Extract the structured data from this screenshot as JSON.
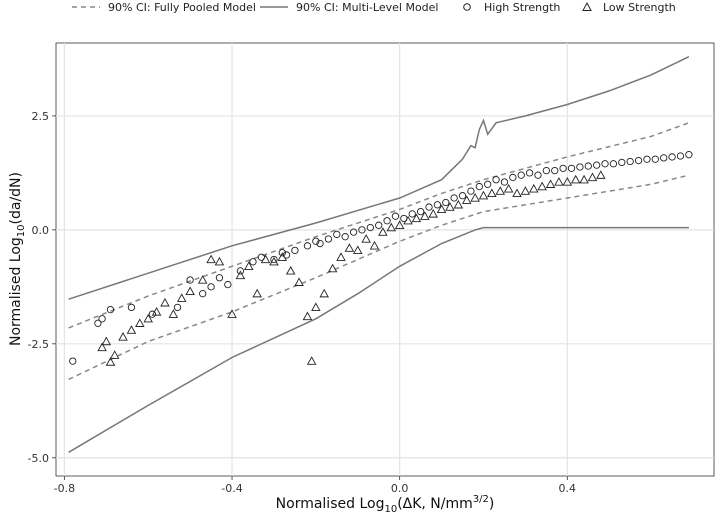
{
  "chart_data": {
    "type": "scatter",
    "title": "",
    "xlabel": "Normalised Log10(ΔK, N/mm3/2)",
    "ylabel": "Normalised Log10(da/dN)",
    "xlim": [
      -0.82,
      0.75
    ],
    "ylim": [
      -5.4,
      4.1
    ],
    "x_ticks": [
      -0.8,
      -0.4,
      0.0,
      0.4
    ],
    "x_tick_labels": [
      "-0.8",
      "-0.4",
      "0.0",
      "0.4"
    ],
    "y_ticks": [
      2.5,
      0.0,
      -2.5,
      -5.0
    ],
    "y_tick_labels": [
      "2.5",
      "0.0",
      "-2.5",
      "-5.0"
    ],
    "grid": true,
    "legend_position": "top",
    "legend": [
      {
        "label": "90% CI: Fully Pooled Model",
        "style": "dashed",
        "color": "#888888"
      },
      {
        "label": "90% CI: Multi-Level Model",
        "style": "solid",
        "color": "#777777"
      },
      {
        "label": "High Strength",
        "marker": "circle"
      },
      {
        "label": "Low Strength",
        "marker": "triangle"
      }
    ],
    "series": [
      {
        "name": "90% CI: Fully Pooled Model",
        "kind": "band",
        "style": "dashed",
        "upper": [
          [
            -0.79,
            -2.15
          ],
          [
            -0.6,
            -1.45
          ],
          [
            -0.4,
            -0.8
          ],
          [
            -0.2,
            -0.15
          ],
          [
            0.0,
            0.45
          ],
          [
            0.1,
            0.8
          ],
          [
            0.2,
            1.1
          ],
          [
            0.4,
            1.6
          ],
          [
            0.6,
            2.05
          ],
          [
            0.69,
            2.35
          ]
        ],
        "lower": [
          [
            -0.79,
            -3.28
          ],
          [
            -0.6,
            -2.45
          ],
          [
            -0.4,
            -1.8
          ],
          [
            -0.2,
            -1.05
          ],
          [
            0.0,
            -0.25
          ],
          [
            0.1,
            0.1
          ],
          [
            0.2,
            0.4
          ],
          [
            0.4,
            0.7
          ],
          [
            0.6,
            1.0
          ],
          [
            0.69,
            1.2
          ]
        ]
      },
      {
        "name": "90% CI: Multi-Level Model",
        "kind": "band",
        "style": "solid",
        "upper": [
          [
            -0.79,
            -1.52
          ],
          [
            -0.6,
            -0.95
          ],
          [
            -0.4,
            -0.35
          ],
          [
            -0.2,
            0.15
          ],
          [
            0.0,
            0.7
          ],
          [
            0.1,
            1.1
          ],
          [
            0.15,
            1.55
          ],
          [
            0.17,
            1.85
          ],
          [
            0.18,
            1.8
          ],
          [
            0.19,
            2.2
          ],
          [
            0.2,
            2.4
          ],
          [
            0.21,
            2.1
          ],
          [
            0.23,
            2.35
          ],
          [
            0.3,
            2.5
          ],
          [
            0.4,
            2.75
          ],
          [
            0.5,
            3.05
          ],
          [
            0.6,
            3.4
          ],
          [
            0.69,
            3.8
          ]
        ],
        "lower": [
          [
            -0.79,
            -4.88
          ],
          [
            -0.6,
            -3.85
          ],
          [
            -0.4,
            -2.8
          ],
          [
            -0.2,
            -1.95
          ],
          [
            -0.1,
            -1.4
          ],
          [
            0.0,
            -0.8
          ],
          [
            0.1,
            -0.3
          ],
          [
            0.18,
            0.0
          ],
          [
            0.2,
            0.05
          ],
          [
            0.4,
            0.05
          ],
          [
            0.69,
            0.05
          ]
        ]
      },
      {
        "name": "High Strength",
        "kind": "points",
        "marker": "circle",
        "points": [
          [
            -0.78,
            -2.88
          ],
          [
            -0.72,
            -2.05
          ],
          [
            -0.71,
            -1.95
          ],
          [
            -0.69,
            -1.75
          ],
          [
            -0.64,
            -1.7
          ],
          [
            -0.59,
            -1.85
          ],
          [
            -0.53,
            -1.7
          ],
          [
            -0.5,
            -1.1
          ],
          [
            -0.47,
            -1.4
          ],
          [
            -0.45,
            -1.25
          ],
          [
            -0.43,
            -1.05
          ],
          [
            -0.41,
            -1.2
          ],
          [
            -0.38,
            -0.9
          ],
          [
            -0.35,
            -0.7
          ],
          [
            -0.33,
            -0.6
          ],
          [
            -0.3,
            -0.65
          ],
          [
            -0.28,
            -0.5
          ],
          [
            -0.27,
            -0.55
          ],
          [
            -0.25,
            -0.45
          ],
          [
            -0.22,
            -0.35
          ],
          [
            -0.2,
            -0.25
          ],
          [
            -0.19,
            -0.3
          ],
          [
            -0.17,
            -0.2
          ],
          [
            -0.15,
            -0.1
          ],
          [
            -0.13,
            -0.15
          ],
          [
            -0.11,
            -0.05
          ],
          [
            -0.09,
            0.0
          ],
          [
            -0.07,
            0.05
          ],
          [
            -0.05,
            0.1
          ],
          [
            -0.03,
            0.2
          ],
          [
            -0.01,
            0.3
          ],
          [
            0.01,
            0.25
          ],
          [
            0.03,
            0.35
          ],
          [
            0.05,
            0.4
          ],
          [
            0.07,
            0.5
          ],
          [
            0.09,
            0.55
          ],
          [
            0.11,
            0.6
          ],
          [
            0.13,
            0.7
          ],
          [
            0.15,
            0.75
          ],
          [
            0.17,
            0.85
          ],
          [
            0.19,
            0.95
          ],
          [
            0.21,
            1.0
          ],
          [
            0.23,
            1.1
          ],
          [
            0.25,
            1.05
          ],
          [
            0.27,
            1.15
          ],
          [
            0.29,
            1.2
          ],
          [
            0.31,
            1.25
          ],
          [
            0.33,
            1.2
          ],
          [
            0.35,
            1.3
          ],
          [
            0.37,
            1.3
          ],
          [
            0.39,
            1.35
          ],
          [
            0.41,
            1.35
          ],
          [
            0.43,
            1.38
          ],
          [
            0.45,
            1.4
          ],
          [
            0.47,
            1.42
          ],
          [
            0.49,
            1.45
          ],
          [
            0.51,
            1.45
          ],
          [
            0.53,
            1.48
          ],
          [
            0.55,
            1.5
          ],
          [
            0.57,
            1.52
          ],
          [
            0.59,
            1.55
          ],
          [
            0.61,
            1.55
          ],
          [
            0.63,
            1.58
          ],
          [
            0.65,
            1.6
          ],
          [
            0.67,
            1.62
          ],
          [
            0.69,
            1.65
          ]
        ]
      },
      {
        "name": "Low Strength",
        "kind": "points",
        "marker": "triangle",
        "points": [
          [
            -0.71,
            -2.58
          ],
          [
            -0.7,
            -2.45
          ],
          [
            -0.69,
            -2.9
          ],
          [
            -0.68,
            -2.75
          ],
          [
            -0.66,
            -2.35
          ],
          [
            -0.64,
            -2.2
          ],
          [
            -0.62,
            -2.05
          ],
          [
            -0.6,
            -1.95
          ],
          [
            -0.58,
            -1.8
          ],
          [
            -0.56,
            -1.6
          ],
          [
            -0.54,
            -1.85
          ],
          [
            -0.52,
            -1.5
          ],
          [
            -0.5,
            -1.35
          ],
          [
            -0.47,
            -1.1
          ],
          [
            -0.45,
            -0.65
          ],
          [
            -0.43,
            -0.7
          ],
          [
            -0.4,
            -1.85
          ],
          [
            -0.38,
            -1.0
          ],
          [
            -0.36,
            -0.8
          ],
          [
            -0.34,
            -1.4
          ],
          [
            -0.32,
            -0.65
          ],
          [
            -0.3,
            -0.7
          ],
          [
            -0.28,
            -0.6
          ],
          [
            -0.26,
            -0.9
          ],
          [
            -0.24,
            -1.15
          ],
          [
            -0.22,
            -1.9
          ],
          [
            -0.21,
            -2.88
          ],
          [
            -0.2,
            -1.7
          ],
          [
            -0.18,
            -1.4
          ],
          [
            -0.16,
            -0.85
          ],
          [
            -0.14,
            -0.6
          ],
          [
            -0.12,
            -0.4
          ],
          [
            -0.1,
            -0.45
          ],
          [
            -0.08,
            -0.2
          ],
          [
            -0.06,
            -0.35
          ],
          [
            -0.04,
            -0.05
          ],
          [
            -0.02,
            0.05
          ],
          [
            0.0,
            0.1
          ],
          [
            0.02,
            0.2
          ],
          [
            0.04,
            0.25
          ],
          [
            0.06,
            0.3
          ],
          [
            0.08,
            0.35
          ],
          [
            0.1,
            0.45
          ],
          [
            0.12,
            0.5
          ],
          [
            0.14,
            0.55
          ],
          [
            0.16,
            0.65
          ],
          [
            0.18,
            0.7
          ],
          [
            0.2,
            0.75
          ],
          [
            0.22,
            0.8
          ],
          [
            0.24,
            0.85
          ],
          [
            0.26,
            0.9
          ],
          [
            0.28,
            0.8
          ],
          [
            0.3,
            0.85
          ],
          [
            0.32,
            0.9
          ],
          [
            0.34,
            0.95
          ],
          [
            0.36,
            1.0
          ],
          [
            0.38,
            1.05
          ],
          [
            0.4,
            1.05
          ],
          [
            0.42,
            1.1
          ],
          [
            0.44,
            1.1
          ],
          [
            0.46,
            1.15
          ],
          [
            0.48,
            1.2
          ]
        ]
      }
    ]
  }
}
